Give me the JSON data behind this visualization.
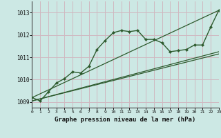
{
  "xlabel": "Graphe pression niveau de la mer (hPa)",
  "background_color": "#cce8e4",
  "grid_color": "#d0b8c0",
  "line_color": "#2d5a2d",
  "xlim": [
    0,
    23
  ],
  "ylim": [
    1008.75,
    1013.5
  ],
  "yticks": [
    1009,
    1010,
    1011,
    1012,
    1013
  ],
  "xticks": [
    0,
    1,
    2,
    3,
    4,
    5,
    6,
    7,
    8,
    9,
    10,
    11,
    12,
    13,
    14,
    15,
    16,
    17,
    18,
    19,
    20,
    21,
    22,
    23
  ],
  "main_x": [
    0,
    1,
    2,
    3,
    4,
    5,
    6,
    7,
    8,
    9,
    10,
    11,
    12,
    13,
    14,
    15,
    16,
    17,
    18,
    19,
    20,
    21,
    22,
    23
  ],
  "main_y": [
    1009.2,
    1009.05,
    1009.45,
    1009.85,
    1010.05,
    1010.35,
    1010.3,
    1010.6,
    1011.35,
    1011.75,
    1012.1,
    1012.2,
    1012.15,
    1012.2,
    1011.8,
    1011.8,
    1011.65,
    1011.25,
    1011.3,
    1011.35,
    1011.55,
    1011.55,
    1012.35,
    1013.1
  ],
  "line1_x": [
    0,
    23
  ],
  "line1_y": [
    1009.2,
    1013.1
  ],
  "line2_x": [
    0,
    23
  ],
  "line2_y": [
    1009.05,
    1011.15
  ],
  "line3_x": [
    0,
    23
  ],
  "line3_y": [
    1009.05,
    1011.25
  ]
}
